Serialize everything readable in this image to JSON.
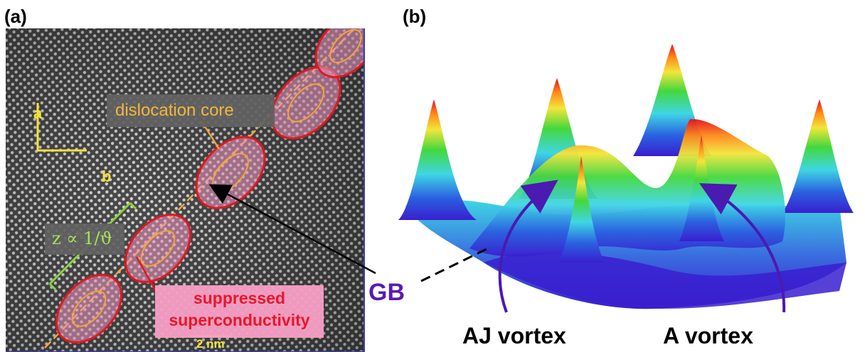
{
  "panels": {
    "a": {
      "label": "(a)"
    },
    "b": {
      "label": "(b)"
    }
  },
  "panel_a": {
    "axis_a": "a",
    "axis_b": "b",
    "dislocation_label": "dislocation core",
    "z_label": "z ∝ 1/ϑ",
    "suppressed_line1": "suppressed",
    "suppressed_line2": "superconductivity",
    "scale_bar": "2 nm"
  },
  "panel_b": {
    "gb_label": "GB",
    "aj_vortex_label": "AJ vortex",
    "a_vortex_label": "A vortex"
  },
  "colors": {
    "ellipse_outer": "#e3171f",
    "ellipse_inner": "#f3a53a",
    "arrow_purple": "#4b1ab0",
    "label_yellow": "#f3e23a"
  }
}
